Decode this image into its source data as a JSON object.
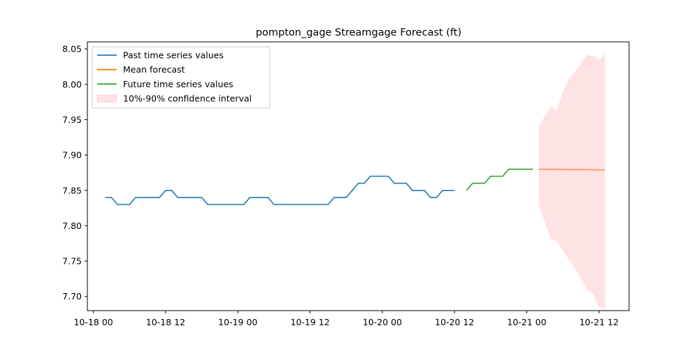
{
  "chart_data": {
    "type": "line",
    "title": "pompton_gage Streamgage Forecast (ft)",
    "xlabel": "",
    "ylabel": "",
    "x_axis_type": "datetime",
    "xlim": [
      "2024-10-17T23:00",
      "2024-10-21T17:00"
    ],
    "ylim": [
      7.68,
      8.06
    ],
    "grid": false,
    "legend_position": "upper-left",
    "x_ticks": [
      {
        "t": "2024-10-18T00:00",
        "label": "10-18 00"
      },
      {
        "t": "2024-10-18T12:00",
        "label": "10-18 12"
      },
      {
        "t": "2024-10-19T00:00",
        "label": "10-19 00"
      },
      {
        "t": "2024-10-19T12:00",
        "label": "10-19 12"
      },
      {
        "t": "2024-10-20T00:00",
        "label": "10-20 00"
      },
      {
        "t": "2024-10-20T12:00",
        "label": "10-20 12"
      },
      {
        "t": "2024-10-21T00:00",
        "label": "10-21 00"
      },
      {
        "t": "2024-10-21T12:00",
        "label": "10-21 12"
      }
    ],
    "y_ticks": [
      {
        "v": 7.7,
        "label": "7.70"
      },
      {
        "v": 7.75,
        "label": "7.75"
      },
      {
        "v": 7.8,
        "label": "7.80"
      },
      {
        "v": 7.85,
        "label": "7.85"
      },
      {
        "v": 7.9,
        "label": "7.90"
      },
      {
        "v": 7.95,
        "label": "7.95"
      },
      {
        "v": 8.0,
        "label": "8.00"
      },
      {
        "v": 8.05,
        "label": "8.05"
      }
    ],
    "series": [
      {
        "name": "Past time series values",
        "color": "#1f77b4",
        "kind": "line",
        "x": [
          "2024-10-18T02:00",
          "2024-10-18T03:00",
          "2024-10-18T04:00",
          "2024-10-18T05:00",
          "2024-10-18T06:00",
          "2024-10-18T07:00",
          "2024-10-18T08:00",
          "2024-10-18T09:00",
          "2024-10-18T10:00",
          "2024-10-18T11:00",
          "2024-10-18T12:00",
          "2024-10-18T13:00",
          "2024-10-18T14:00",
          "2024-10-18T15:00",
          "2024-10-18T16:00",
          "2024-10-18T17:00",
          "2024-10-18T18:00",
          "2024-10-18T19:00",
          "2024-10-18T20:00",
          "2024-10-18T21:00",
          "2024-10-18T22:00",
          "2024-10-18T23:00",
          "2024-10-19T00:00",
          "2024-10-19T01:00",
          "2024-10-19T02:00",
          "2024-10-19T03:00",
          "2024-10-19T04:00",
          "2024-10-19T05:00",
          "2024-10-19T06:00",
          "2024-10-19T07:00",
          "2024-10-19T08:00",
          "2024-10-19T09:00",
          "2024-10-19T10:00",
          "2024-10-19T11:00",
          "2024-10-19T12:00",
          "2024-10-19T13:00",
          "2024-10-19T14:00",
          "2024-10-19T15:00",
          "2024-10-19T16:00",
          "2024-10-19T17:00",
          "2024-10-19T18:00",
          "2024-10-19T19:00",
          "2024-10-19T20:00",
          "2024-10-19T21:00",
          "2024-10-19T22:00",
          "2024-10-19T23:00",
          "2024-10-20T00:00",
          "2024-10-20T01:00",
          "2024-10-20T02:00",
          "2024-10-20T03:00",
          "2024-10-20T04:00",
          "2024-10-20T05:00",
          "2024-10-20T06:00",
          "2024-10-20T07:00",
          "2024-10-20T08:00",
          "2024-10-20T09:00",
          "2024-10-20T10:00",
          "2024-10-20T11:00",
          "2024-10-20T12:00"
        ],
        "values": [
          7.84,
          7.84,
          7.83,
          7.83,
          7.83,
          7.84,
          7.84,
          7.84,
          7.84,
          7.84,
          7.85,
          7.85,
          7.84,
          7.84,
          7.84,
          7.84,
          7.84,
          7.83,
          7.83,
          7.83,
          7.83,
          7.83,
          7.83,
          7.83,
          7.84,
          7.84,
          7.84,
          7.84,
          7.83,
          7.83,
          7.83,
          7.83,
          7.83,
          7.83,
          7.83,
          7.83,
          7.83,
          7.83,
          7.84,
          7.84,
          7.84,
          7.85,
          7.86,
          7.86,
          7.87,
          7.87,
          7.87,
          7.87,
          7.86,
          7.86,
          7.86,
          7.85,
          7.85,
          7.85,
          7.84,
          7.84,
          7.85,
          7.85,
          7.85
        ]
      },
      {
        "name": "Mean forecast",
        "color": "#ff7f0e",
        "kind": "line",
        "x": [
          "2024-10-21T02:00",
          "2024-10-21T13:00"
        ],
        "values": [
          7.88,
          7.879
        ]
      },
      {
        "name": "Future time series values",
        "color": "#2ca02c",
        "kind": "line",
        "x": [
          "2024-10-20T14:00",
          "2024-10-20T15:00",
          "2024-10-20T16:00",
          "2024-10-20T17:00",
          "2024-10-20T18:00",
          "2024-10-20T19:00",
          "2024-10-20T20:00",
          "2024-10-20T21:00",
          "2024-10-20T22:00",
          "2024-10-20T23:00",
          "2024-10-21T00:00",
          "2024-10-21T01:00"
        ],
        "values": [
          7.85,
          7.86,
          7.86,
          7.86,
          7.87,
          7.87,
          7.87,
          7.88,
          7.88,
          7.88,
          7.88,
          7.88
        ]
      },
      {
        "name": "10%-90% confidence interval",
        "color": "#ffb3b8",
        "kind": "band",
        "x": [
          "2024-10-21T02:00",
          "2024-10-21T03:00",
          "2024-10-21T04:00",
          "2024-10-21T05:00",
          "2024-10-21T06:00",
          "2024-10-21T07:00",
          "2024-10-21T08:00",
          "2024-10-21T09:00",
          "2024-10-21T10:00",
          "2024-10-21T11:00",
          "2024-10-21T12:00",
          "2024-10-21T13:00"
        ],
        "upper": [
          7.94,
          7.955,
          7.968,
          7.963,
          7.99,
          8.008,
          8.018,
          8.03,
          8.042,
          8.04,
          8.035,
          8.043
        ],
        "lower": [
          7.83,
          7.805,
          7.782,
          7.778,
          7.765,
          7.752,
          7.74,
          7.725,
          7.71,
          7.703,
          7.685,
          7.682
        ]
      }
    ]
  }
}
